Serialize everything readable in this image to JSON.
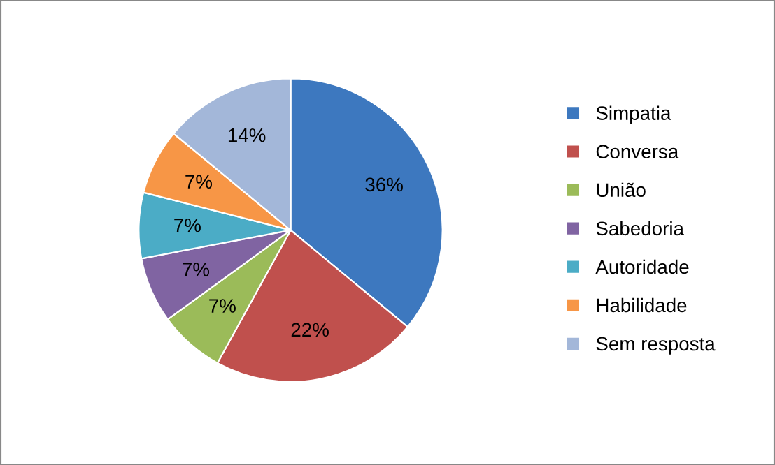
{
  "chart_data": {
    "type": "pie",
    "categories": [
      "Simpatia",
      "Conversa",
      "União",
      "Sabedoria",
      "Autoridade",
      "Habilidade",
      "Sem resposta"
    ],
    "values": [
      36,
      22,
      7,
      7,
      7,
      7,
      14
    ],
    "colors": [
      "#3d78bf",
      "#c0504d",
      "#9bbb59",
      "#8064a2",
      "#4bacc6",
      "#f79646",
      "#a3b7d9"
    ],
    "value_labels": [
      "36%",
      "22%",
      "7%",
      "7%",
      "7%",
      "7%",
      "14%"
    ],
    "legend": "right"
  }
}
